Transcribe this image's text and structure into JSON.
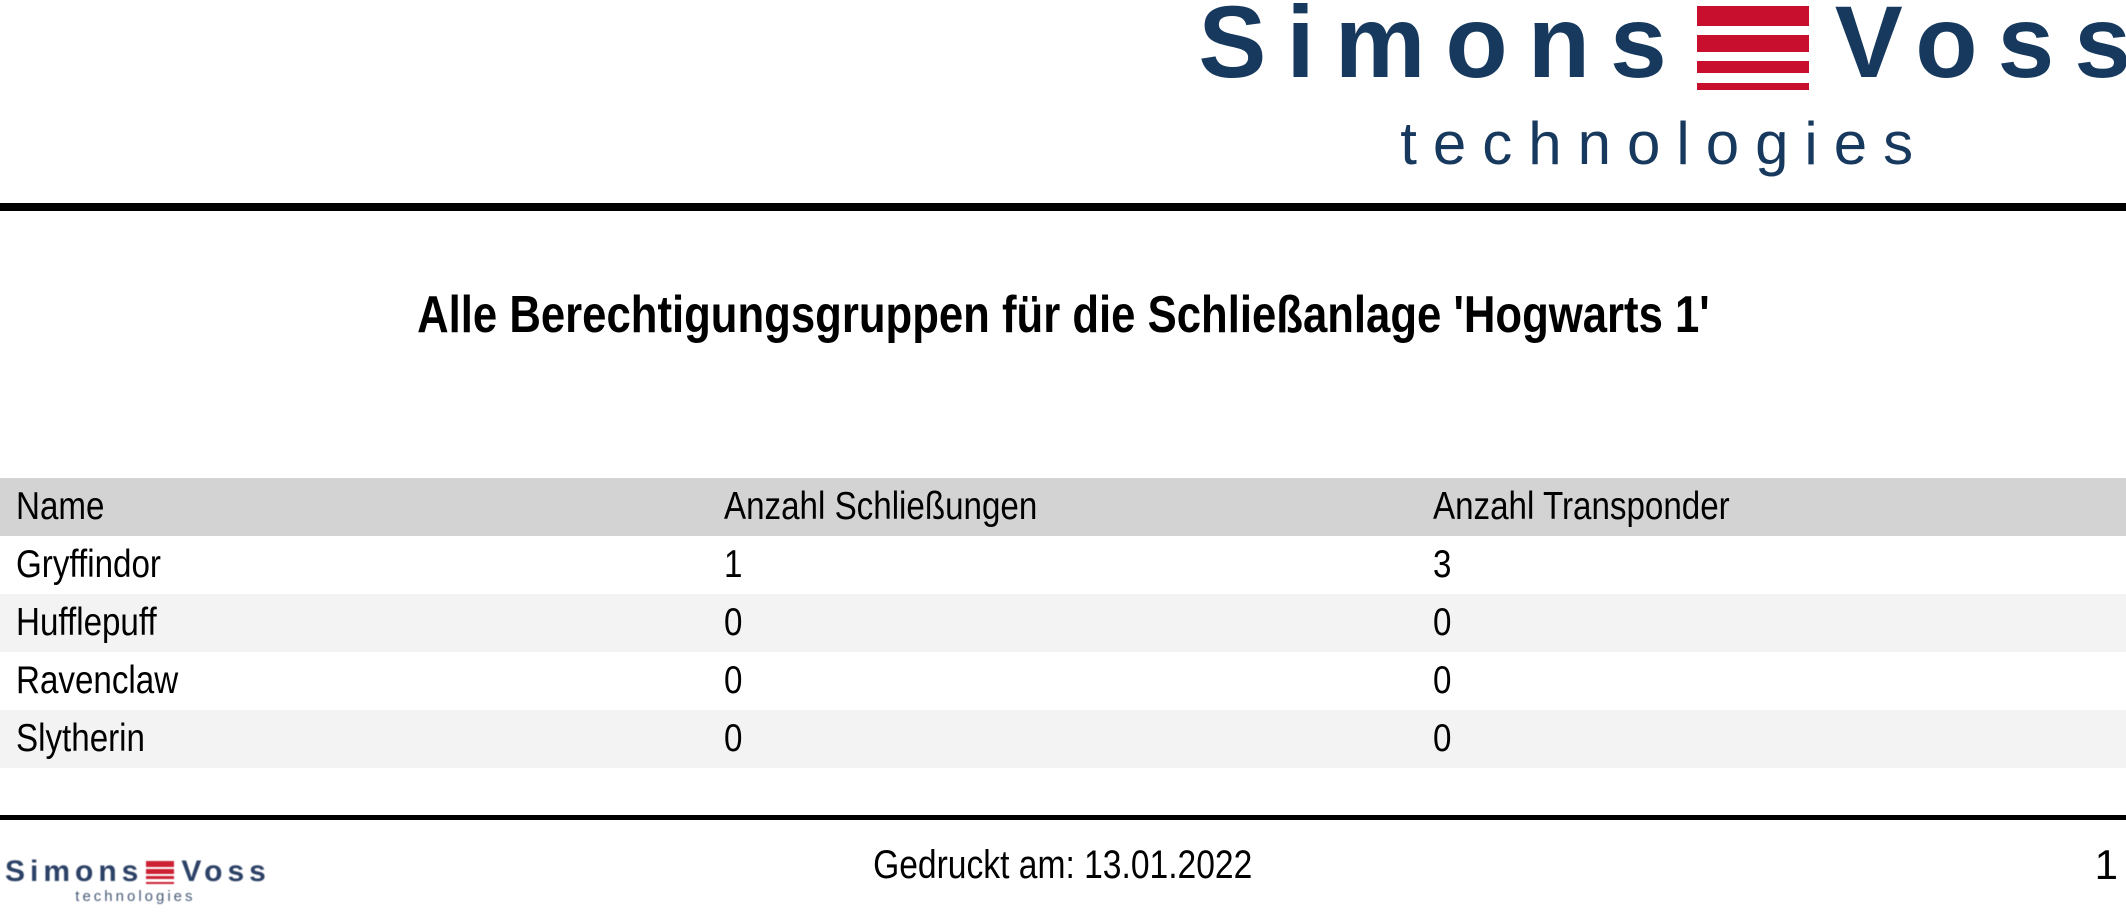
{
  "brand": {
    "word_left": "Simons",
    "word_right": "Voss",
    "tagline": "technologies",
    "navy": "#17395E",
    "red": "#C8102E"
  },
  "title": "Alle Berechtigungsgruppen für die Schließanlage 'Hogwarts 1'",
  "table": {
    "header_bg": "#D3D3D3",
    "alt_row_bg": "#F3F3F3",
    "columns": [
      "Name",
      "Anzahl Schließungen",
      "Anzahl Transponder"
    ],
    "rows": [
      {
        "name": "Gryffindor",
        "anzahl_schliessungen": "1",
        "anzahl_transponder": "3"
      },
      {
        "name": "Hufflepuff",
        "anzahl_schliessungen": "0",
        "anzahl_transponder": "0"
      },
      {
        "name": "Ravenclaw",
        "anzahl_schliessungen": "0",
        "anzahl_transponder": "0"
      },
      {
        "name": "Slytherin",
        "anzahl_schliessungen": "0",
        "anzahl_transponder": "0"
      }
    ]
  },
  "footer": {
    "printed_label": "Gedruckt am: 13.01.2022",
    "page_number": "1"
  }
}
